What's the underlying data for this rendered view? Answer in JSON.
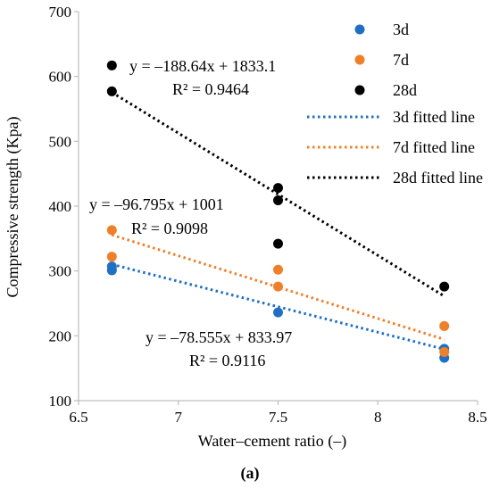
{
  "chart_data": {
    "type": "scatter",
    "xlabel": "Water–cement ratio (–)",
    "ylabel": "Compressive strength (Kpa)",
    "xlim": [
      6.5,
      8.5
    ],
    "ylim": [
      100,
      700
    ],
    "xticks": [
      6.5,
      7,
      7.5,
      8,
      8.5
    ],
    "xtick_labels": [
      "6.5",
      "7",
      "7.5",
      "8",
      "8.5"
    ],
    "yticks": [
      100,
      200,
      300,
      400,
      500,
      600,
      700
    ],
    "ytick_labels": [
      "100",
      "200",
      "300",
      "400",
      "500",
      "600",
      "700"
    ],
    "grid": false,
    "legend_position": "top-right",
    "series": [
      {
        "name": "3d",
        "color": "#1f6fc5",
        "points": [
          {
            "x": 6.667,
            "y": 307
          },
          {
            "x": 6.667,
            "y": 301
          },
          {
            "x": 7.5,
            "y": 236
          },
          {
            "x": 8.333,
            "y": 180
          },
          {
            "x": 8.333,
            "y": 166
          }
        ]
      },
      {
        "name": "7d",
        "color": "#f07f2a",
        "points": [
          {
            "x": 6.667,
            "y": 363
          },
          {
            "x": 6.667,
            "y": 322
          },
          {
            "x": 7.5,
            "y": 302
          },
          {
            "x": 7.5,
            "y": 276
          },
          {
            "x": 8.333,
            "y": 215
          },
          {
            "x": 8.333,
            "y": 175
          }
        ]
      },
      {
        "name": "28d",
        "color": "#000000",
        "points": [
          {
            "x": 6.667,
            "y": 617
          },
          {
            "x": 6.667,
            "y": 577
          },
          {
            "x": 7.5,
            "y": 428
          },
          {
            "x": 7.5,
            "y": 409
          },
          {
            "x": 7.5,
            "y": 342
          },
          {
            "x": 8.333,
            "y": 276
          }
        ]
      }
    ],
    "fitted_lines": [
      {
        "name": "3d fitted line",
        "color": "#1f6fc5",
        "slope": -78.555,
        "intercept": 833.97,
        "x_range": [
          6.667,
          8.333
        ]
      },
      {
        "name": "7d fitted line",
        "color": "#f07f2a",
        "slope": -96.795,
        "intercept": 1001,
        "x_range": [
          6.667,
          8.333
        ]
      },
      {
        "name": "28d fitted line",
        "color": "#000000",
        "slope": -188.64,
        "intercept": 1833.1,
        "x_range": [
          6.667,
          8.333
        ]
      }
    ],
    "annotations": [
      {
        "id": "eq28",
        "text": "y = –188.64x + 1833.1",
        "r2": "R² = 0.9464"
      },
      {
        "id": "eq7",
        "text": "y = –96.795x + 1001",
        "r2": "R² = 0.9098"
      },
      {
        "id": "eq3",
        "text": "y = –78.555x + 833.97",
        "r2": "R² = 0.9116"
      }
    ],
    "sublabel": "(a)"
  }
}
